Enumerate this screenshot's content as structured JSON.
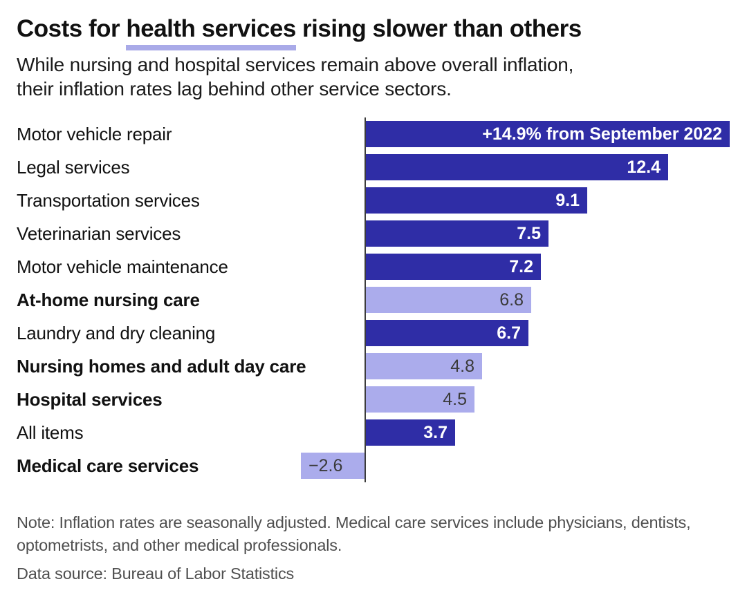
{
  "header": {
    "title_prefix": "Costs for ",
    "title_highlight": "health services",
    "title_suffix": " rising slower than others",
    "subtitle_line1": "While nursing and hospital services remain above overall inflation,",
    "subtitle_line2": "their inflation rates lag behind other service sectors."
  },
  "chart_data": {
    "type": "bar",
    "orientation": "horizontal",
    "title": "Costs for health services rising slower than others",
    "unit": "% change from September 2022",
    "xlim": [
      -2.6,
      14.9
    ],
    "grid": false,
    "legend": "none",
    "categories": [
      "Motor vehicle repair",
      "Legal services",
      "Transportation services",
      "Veterinarian services",
      "Motor vehicle maintenance",
      "At-home nursing care",
      "Laundry and dry cleaning",
      "Nursing homes and adult day care",
      "Hospital services",
      "All items",
      "Medical care services"
    ],
    "values": [
      14.9,
      12.4,
      9.1,
      7.5,
      7.2,
      6.8,
      6.7,
      4.8,
      4.5,
      3.7,
      -2.6
    ],
    "rows": [
      {
        "label": "Motor vehicle repair",
        "value": 14.9,
        "value_label": "+14.9% from September 2022",
        "highlight": false
      },
      {
        "label": "Legal services",
        "value": 12.4,
        "value_label": "12.4",
        "highlight": false
      },
      {
        "label": "Transportation services",
        "value": 9.1,
        "value_label": "9.1",
        "highlight": false
      },
      {
        "label": "Veterinarian services",
        "value": 7.5,
        "value_label": "7.5",
        "highlight": false
      },
      {
        "label": "Motor vehicle maintenance",
        "value": 7.2,
        "value_label": "7.2",
        "highlight": false
      },
      {
        "label": "At-home nursing care",
        "value": 6.8,
        "value_label": "6.8",
        "highlight": true
      },
      {
        "label": "Laundry and dry cleaning",
        "value": 6.7,
        "value_label": "6.7",
        "highlight": false
      },
      {
        "label": "Nursing homes and adult day care",
        "value": 4.8,
        "value_label": "4.8",
        "highlight": true
      },
      {
        "label": "Hospital services",
        "value": 4.5,
        "value_label": "4.5",
        "highlight": true
      },
      {
        "label": "All items",
        "value": 3.7,
        "value_label": "3.7",
        "highlight": false
      },
      {
        "label": "Medical care services",
        "value": -2.6,
        "value_label": "−2.6",
        "highlight": true
      }
    ],
    "colors": {
      "bar": "#2f2da6",
      "highlight_bar": "#abacec",
      "title_underline": "#a9aae8",
      "bar_value_text": "#ffffff",
      "highlight_bar_value_text": "#3a3a3a",
      "axis_line": "#3c3c3c"
    }
  },
  "footer": {
    "note": "Note: Inflation rates are seasonally adjusted. Medical care services include physicians, dentists, optometrists, and other medical professionals.",
    "source": "Data source: Bureau of Labor Statistics"
  }
}
